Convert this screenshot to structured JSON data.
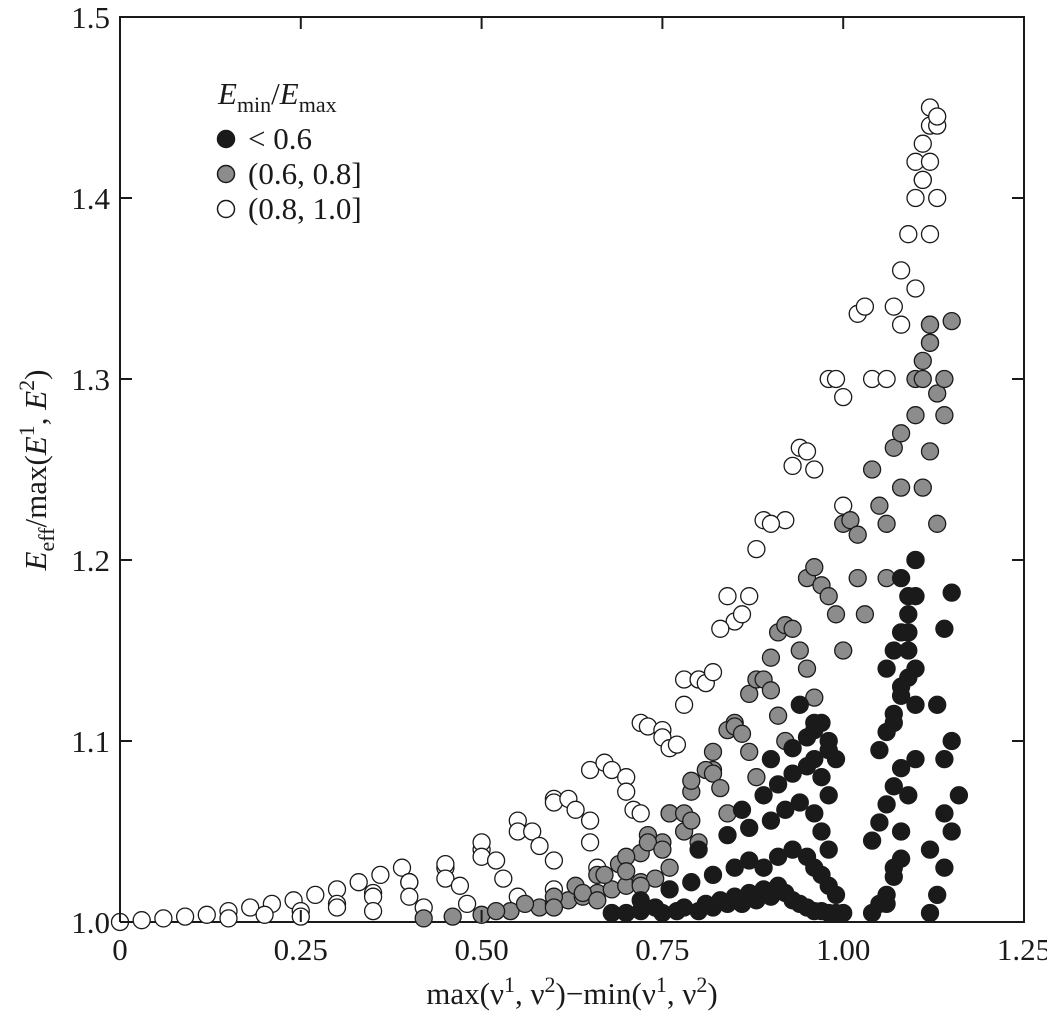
{
  "chart_data": {
    "type": "scatter",
    "title": "",
    "xlim": [
      0,
      1.25
    ],
    "ylim": [
      1.0,
      1.5
    ],
    "x_ticks": [
      "0",
      "0.25",
      "0.50",
      "0.75",
      "1.00",
      "1.25"
    ],
    "x_tick_values": [
      0,
      0.25,
      0.5,
      0.75,
      1.0,
      1.25
    ],
    "y_ticks": [
      "1.0",
      "1.1",
      "1.2",
      "1.3",
      "1.4",
      "1.5"
    ],
    "y_tick_values": [
      1.0,
      1.1,
      1.2,
      1.3,
      1.4,
      1.5
    ],
    "xlabel": {
      "parts": [
        "max(ν",
        "1",
        ", ν",
        "2",
        ")−min(ν",
        "1",
        ", ν",
        "2",
        ")"
      ]
    },
    "ylabel": {
      "parts": [
        "E",
        "eff",
        "/max(",
        "E",
        "1",
        ", ",
        "E",
        "2",
        ")"
      ]
    },
    "legend": {
      "title_parts": [
        "E",
        "min",
        "/",
        "E",
        "max"
      ],
      "position": "top-left",
      "entries": [
        {
          "label": "< 0.6",
          "color": "#1a1a1a"
        },
        {
          "label": "(0.6, 0.8]",
          "color": "#8c8c8c"
        },
        {
          "label": "(0.8, 1.0]",
          "color": "#ffffff"
        }
      ]
    },
    "series": [
      {
        "name": "< 0.6",
        "color": "#1a1a1a",
        "x": [
          0.68,
          0.7,
          0.72,
          0.74,
          0.75,
          0.77,
          0.78,
          0.8,
          0.81,
          0.82,
          0.83,
          0.84,
          0.85,
          0.86,
          0.87,
          0.88,
          0.89,
          0.9,
          0.91,
          0.92,
          0.93,
          0.94,
          0.95,
          0.96,
          0.97,
          0.98,
          0.99,
          1.0,
          0.72,
          0.76,
          0.79,
          0.82,
          0.85,
          0.87,
          0.89,
          0.91,
          0.93,
          0.95,
          0.96,
          0.97,
          0.98,
          0.99,
          0.8,
          0.84,
          0.87,
          0.9,
          0.92,
          0.94,
          0.96,
          0.97,
          0.98,
          0.86,
          0.89,
          0.91,
          0.93,
          0.95,
          0.96,
          0.97,
          0.98,
          0.9,
          0.93,
          0.95,
          0.96,
          0.97,
          0.98,
          0.99,
          0.94,
          0.96,
          0.98,
          1.04,
          1.05,
          1.06,
          1.07,
          1.08,
          1.04,
          1.05,
          1.06,
          1.07,
          1.08,
          1.05,
          1.06,
          1.07,
          1.08,
          1.09,
          1.06,
          1.07,
          1.08,
          1.09,
          1.06,
          1.07,
          1.08,
          1.09,
          1.1,
          1.07,
          1.08,
          1.09,
          1.1,
          1.08,
          1.09,
          1.1,
          1.09,
          1.1,
          1.1,
          1.12,
          1.13,
          1.14,
          1.15,
          1.16,
          1.14,
          1.15,
          1.13,
          1.14,
          1.15,
          1.12,
          1.14
        ],
        "y": [
          1.005,
          1.005,
          1.006,
          1.008,
          1.005,
          1.006,
          1.008,
          1.006,
          1.01,
          1.008,
          1.012,
          1.01,
          1.014,
          1.01,
          1.016,
          1.012,
          1.018,
          1.014,
          1.02,
          1.016,
          1.012,
          1.01,
          1.008,
          1.006,
          1.006,
          1.005,
          1.005,
          1.005,
          1.012,
          1.018,
          1.022,
          1.026,
          1.03,
          1.034,
          1.03,
          1.036,
          1.04,
          1.036,
          1.03,
          1.026,
          1.02,
          1.015,
          1.04,
          1.048,
          1.052,
          1.056,
          1.062,
          1.066,
          1.06,
          1.05,
          1.04,
          1.062,
          1.07,
          1.076,
          1.082,
          1.086,
          1.09,
          1.08,
          1.07,
          1.09,
          1.096,
          1.102,
          1.106,
          1.11,
          1.1,
          1.09,
          1.12,
          1.11,
          1.095,
          1.005,
          1.01,
          1.015,
          1.025,
          1.035,
          1.045,
          1.055,
          1.065,
          1.075,
          1.085,
          1.095,
          1.105,
          1.115,
          1.125,
          1.135,
          1.14,
          1.15,
          1.16,
          1.17,
          1.01,
          1.03,
          1.05,
          1.07,
          1.09,
          1.11,
          1.13,
          1.15,
          1.18,
          1.19,
          1.18,
          1.2,
          1.16,
          1.14,
          1.12,
          1.005,
          1.015,
          1.03,
          1.05,
          1.07,
          1.09,
          1.1,
          1.12,
          1.162,
          1.182,
          1.04,
          1.06
        ]
      },
      {
        "name": "(0.6, 0.8]",
        "color": "#8c8c8c",
        "x": [
          0.42,
          0.46,
          0.5,
          0.54,
          0.58,
          0.6,
          0.62,
          0.64,
          0.66,
          0.68,
          0.7,
          0.72,
          0.74,
          0.52,
          0.56,
          0.6,
          0.63,
          0.66,
          0.69,
          0.72,
          0.75,
          0.78,
          0.6,
          0.64,
          0.67,
          0.7,
          0.73,
          0.76,
          0.79,
          0.82,
          0.66,
          0.7,
          0.73,
          0.76,
          0.79,
          0.82,
          0.85,
          0.72,
          0.75,
          0.78,
          0.81,
          0.84,
          0.87,
          0.9,
          0.76,
          0.79,
          0.82,
          0.85,
          0.88,
          0.91,
          0.8,
          0.83,
          0.86,
          0.89,
          0.92,
          0.95,
          0.84,
          0.87,
          0.9,
          0.93,
          0.96,
          0.88,
          0.91,
          0.94,
          0.97,
          1.0,
          0.92,
          0.95,
          0.98,
          1.01,
          0.96,
          0.99,
          1.02,
          1.04,
          1.0,
          1.02,
          1.05,
          1.07,
          1.03,
          1.06,
          1.08,
          1.1,
          1.12,
          1.06,
          1.08,
          1.1,
          1.11,
          1.12,
          1.13,
          1.14,
          1.15,
          1.09,
          1.1,
          1.11,
          1.12,
          1.13,
          1.14,
          1.11,
          1.12
        ],
        "y": [
          1.002,
          1.003,
          1.004,
          1.006,
          1.008,
          1.01,
          1.012,
          1.014,
          1.016,
          1.018,
          1.02,
          1.022,
          1.024,
          1.006,
          1.01,
          1.014,
          1.02,
          1.026,
          1.032,
          1.038,
          1.044,
          1.05,
          1.008,
          1.016,
          1.026,
          1.036,
          1.048,
          1.06,
          1.072,
          1.084,
          1.012,
          1.028,
          1.044,
          1.06,
          1.078,
          1.094,
          1.11,
          1.02,
          1.04,
          1.06,
          1.084,
          1.106,
          1.126,
          1.146,
          1.03,
          1.056,
          1.082,
          1.108,
          1.134,
          1.16,
          1.044,
          1.074,
          1.104,
          1.134,
          1.164,
          1.19,
          1.06,
          1.094,
          1.128,
          1.162,
          1.196,
          1.08,
          1.114,
          1.15,
          1.186,
          1.22,
          1.1,
          1.14,
          1.18,
          1.222,
          1.124,
          1.17,
          1.214,
          1.25,
          1.15,
          1.19,
          1.23,
          1.262,
          1.17,
          1.22,
          1.27,
          1.3,
          1.32,
          1.19,
          1.24,
          1.28,
          1.3,
          1.33,
          1.292,
          1.28,
          1.332,
          1.16,
          1.2,
          1.24,
          1.26,
          1.22,
          1.3,
          1.31,
          1.33
        ]
      },
      {
        "name": "(0.8, 1.0]",
        "color": "#ffffff",
        "x": [
          0.0,
          0.03,
          0.06,
          0.09,
          0.12,
          0.15,
          0.18,
          0.21,
          0.24,
          0.27,
          0.3,
          0.33,
          0.36,
          0.39,
          0.15,
          0.2,
          0.25,
          0.3,
          0.35,
          0.4,
          0.45,
          0.5,
          0.25,
          0.3,
          0.35,
          0.4,
          0.45,
          0.5,
          0.55,
          0.6,
          0.35,
          0.4,
          0.45,
          0.5,
          0.55,
          0.6,
          0.65,
          0.42,
          0.47,
          0.52,
          0.57,
          0.62,
          0.67,
          0.72,
          0.48,
          0.53,
          0.58,
          0.63,
          0.68,
          0.73,
          0.78,
          0.55,
          0.6,
          0.65,
          0.7,
          0.75,
          0.8,
          0.6,
          0.65,
          0.7,
          0.75,
          0.8,
          0.85,
          0.66,
          0.71,
          0.76,
          0.81,
          0.86,
          0.72,
          0.77,
          0.82,
          0.87,
          0.92,
          0.78,
          0.83,
          0.88,
          0.93,
          0.84,
          0.89,
          0.94,
          0.98,
          0.9,
          0.95,
          0.99,
          1.02,
          0.96,
          1.0,
          1.03,
          1.0,
          1.04,
          1.07,
          1.06,
          1.08,
          1.1,
          1.12,
          1.08,
          1.09,
          1.1,
          1.11,
          1.12,
          1.13,
          1.1,
          1.11,
          1.12,
          1.11,
          1.12,
          1.13,
          1.12,
          1.13
        ],
        "y": [
          1.0,
          1.001,
          1.002,
          1.003,
          1.004,
          1.006,
          1.008,
          1.01,
          1.012,
          1.015,
          1.018,
          1.022,
          1.026,
          1.03,
          1.002,
          1.004,
          1.006,
          1.01,
          1.016,
          1.022,
          1.03,
          1.04,
          1.003,
          1.008,
          1.014,
          1.022,
          1.032,
          1.044,
          1.056,
          1.068,
          1.006,
          1.014,
          1.024,
          1.036,
          1.05,
          1.066,
          1.084,
          1.008,
          1.02,
          1.034,
          1.05,
          1.068,
          1.088,
          1.11,
          1.01,
          1.024,
          1.042,
          1.062,
          1.084,
          1.108,
          1.134,
          1.014,
          1.034,
          1.056,
          1.08,
          1.106,
          1.134,
          1.018,
          1.044,
          1.072,
          1.102,
          1.134,
          1.166,
          1.03,
          1.062,
          1.096,
          1.132,
          1.17,
          1.06,
          1.098,
          1.138,
          1.18,
          1.222,
          1.12,
          1.162,
          1.206,
          1.252,
          1.18,
          1.222,
          1.262,
          1.3,
          1.22,
          1.26,
          1.3,
          1.336,
          1.25,
          1.29,
          1.34,
          1.23,
          1.3,
          1.34,
          1.3,
          1.33,
          1.35,
          1.32,
          1.36,
          1.38,
          1.4,
          1.41,
          1.38,
          1.4,
          1.42,
          1.43,
          1.44,
          1.41,
          1.42,
          1.44,
          1.45,
          1.445
        ]
      }
    ]
  }
}
